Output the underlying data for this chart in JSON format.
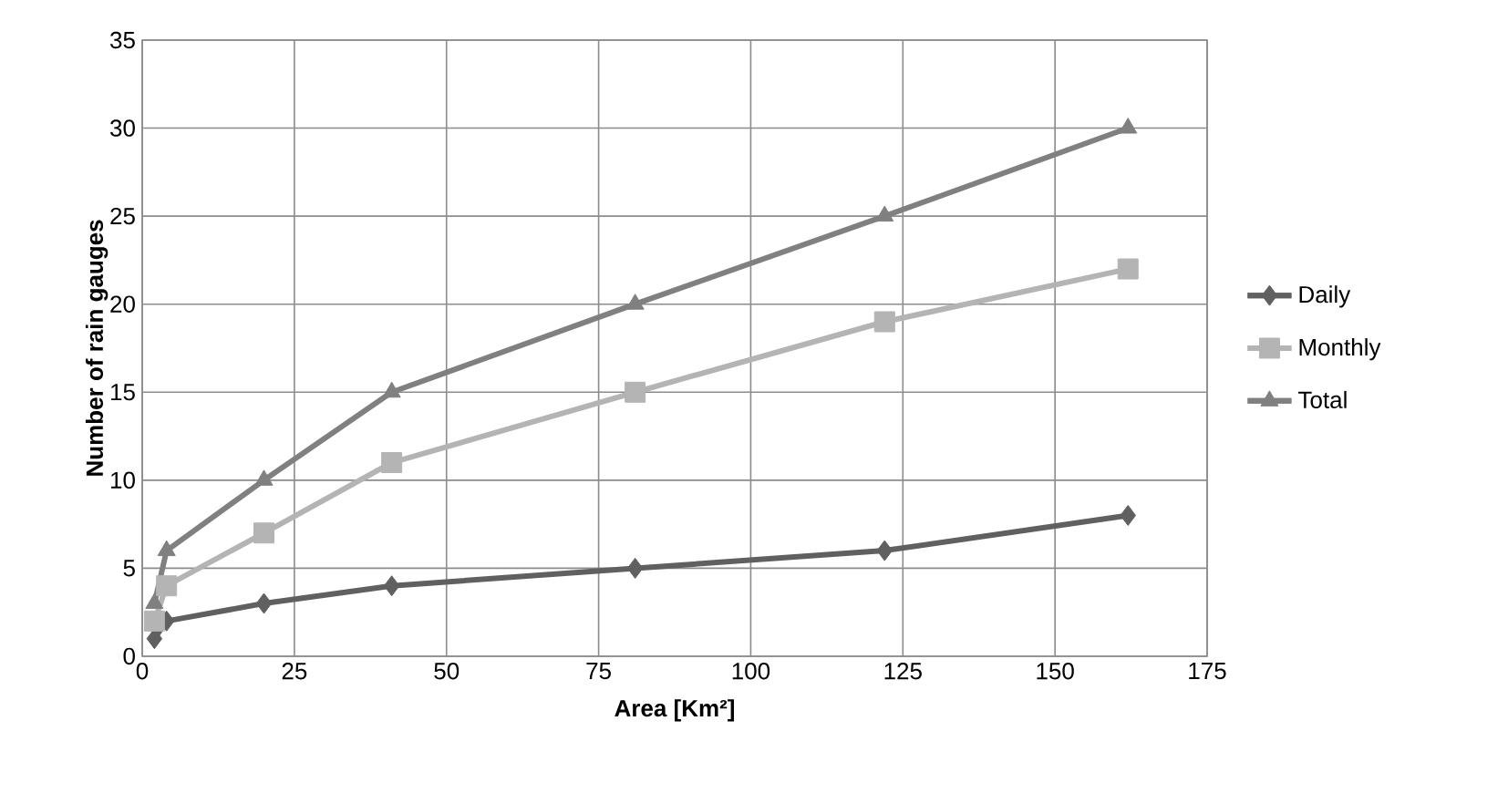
{
  "chart_data": {
    "type": "line",
    "xlabel": "Area [Km²]",
    "ylabel": "Number of rain gauges",
    "x": [
      2,
      4,
      20,
      41,
      81,
      122,
      162
    ],
    "series": [
      {
        "name": "Daily",
        "color": "#606060",
        "values": [
          1,
          2,
          3,
          4,
          5,
          6,
          8
        ],
        "marker": "diamond"
      },
      {
        "name": "Monthly",
        "color": "#b4b4b4",
        "values": [
          2,
          4,
          7,
          11,
          15,
          19,
          22
        ],
        "marker": "square"
      },
      {
        "name": "Total",
        "color": "#808080",
        "values": [
          3,
          6,
          10,
          15,
          20,
          25,
          30
        ],
        "marker": "triangle"
      }
    ],
    "xlim": [
      0,
      175
    ],
    "xticks": [
      0,
      25,
      50,
      75,
      100,
      125,
      150,
      175
    ],
    "ylim": [
      0,
      35
    ],
    "yticks": [
      0,
      5,
      10,
      15,
      20,
      25,
      30,
      35
    ],
    "grid": true,
    "legend": "right"
  }
}
